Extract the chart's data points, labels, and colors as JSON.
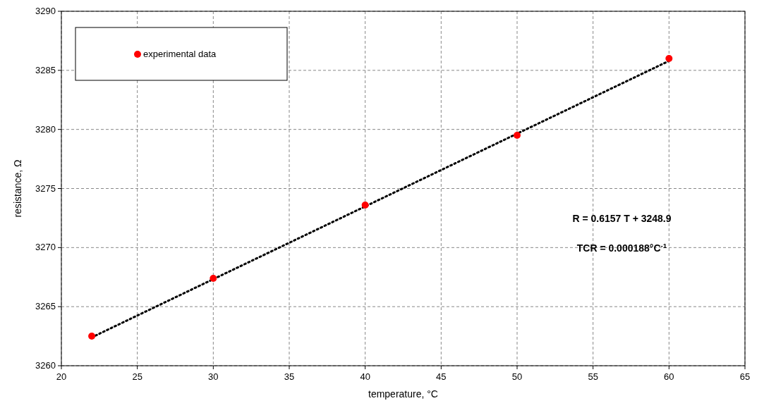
{
  "chart_data": {
    "type": "scatter",
    "xlabel": "temperature, °C",
    "ylabel": "resistance, Ω",
    "xlim": [
      20,
      65
    ],
    "xticks": [
      20,
      25,
      30,
      35,
      40,
      45,
      50,
      55,
      60,
      65
    ],
    "ylim": [
      3260,
      3290
    ],
    "yticks": [
      3260,
      3265,
      3270,
      3275,
      3280,
      3285,
      3290
    ],
    "grid": true,
    "legend": "top left",
    "series": [
      {
        "name": "experimental data",
        "marker": "circle",
        "color": "#ff0000",
        "x": [
          22,
          30,
          40,
          50,
          60
        ],
        "values": [
          3262.5,
          3267.4,
          3273.6,
          3279.5,
          3286.0
        ]
      },
      {
        "type": "line",
        "marker": "none",
        "line_style": "dotted",
        "color": "#000000",
        "x": [
          22,
          60
        ],
        "values": [
          3262.4,
          3285.8
        ]
      }
    ],
    "annotations": [
      "R = 0.6157 T + 3248.9",
      "TCR = 0.000188°C$^{-1}$"
    ]
  }
}
